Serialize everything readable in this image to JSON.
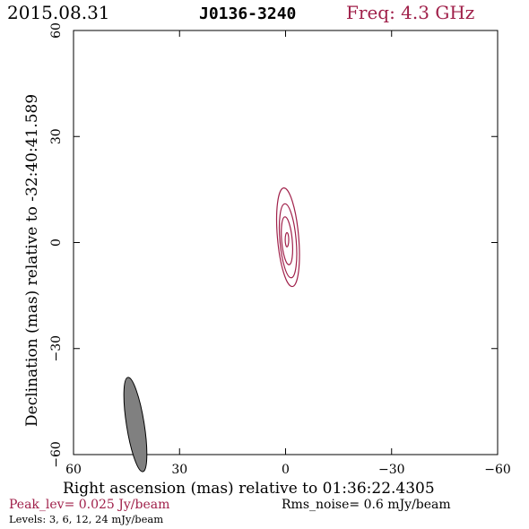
{
  "header": {
    "date": "2015.08.31",
    "source": "J0136-3240",
    "freq": "Freq: 4.3 GHz"
  },
  "footer": {
    "peak": "Peak_lev=  0.025 Jy/beam",
    "rms": "Rms_noise=   0.6 mJy/beam",
    "levels": "Levels:   3,   6,  12,  24 mJy/beam"
  },
  "colors": {
    "contour": "#a0204a",
    "axis": "#000000",
    "beam_fill": "#808080"
  },
  "chart_data": {
    "type": "contour",
    "xlabel": "Right ascension (mas) relative to 01:36:22.4305",
    "ylabel": "Declination (mas) relative to -32:40:41.589",
    "xlim": [
      60,
      -60
    ],
    "ylim": [
      -60,
      60
    ],
    "x_ticks": [
      60,
      30,
      0,
      -30,
      -60
    ],
    "y_ticks": [
      -60,
      -30,
      0,
      30,
      60
    ],
    "x_tick_labels": [
      "60",
      "30",
      "0",
      "−30",
      "−60"
    ],
    "y_tick_labels": [
      "−60",
      "−30",
      "0",
      "30",
      "60"
    ],
    "contours": [
      {
        "level": 3,
        "x": -0.7,
        "y": 1.5,
        "rx": 3.0,
        "ry": 14.0,
        "angle": -5
      },
      {
        "level": 6,
        "x": -0.7,
        "y": 0.5,
        "rx": 2.3,
        "ry": 10.5,
        "angle": -5
      },
      {
        "level": 12,
        "x": -0.4,
        "y": 0.5,
        "rx": 1.5,
        "ry": 6.8,
        "angle": -5
      },
      {
        "level": 24,
        "x": -0.4,
        "y": 0.8,
        "rx": 0.5,
        "ry": 2.0,
        "angle": 0
      }
    ],
    "beam": {
      "x": 42.5,
      "y": -51.5,
      "major": 13.5,
      "minor": 2.5,
      "angle": -9
    }
  }
}
